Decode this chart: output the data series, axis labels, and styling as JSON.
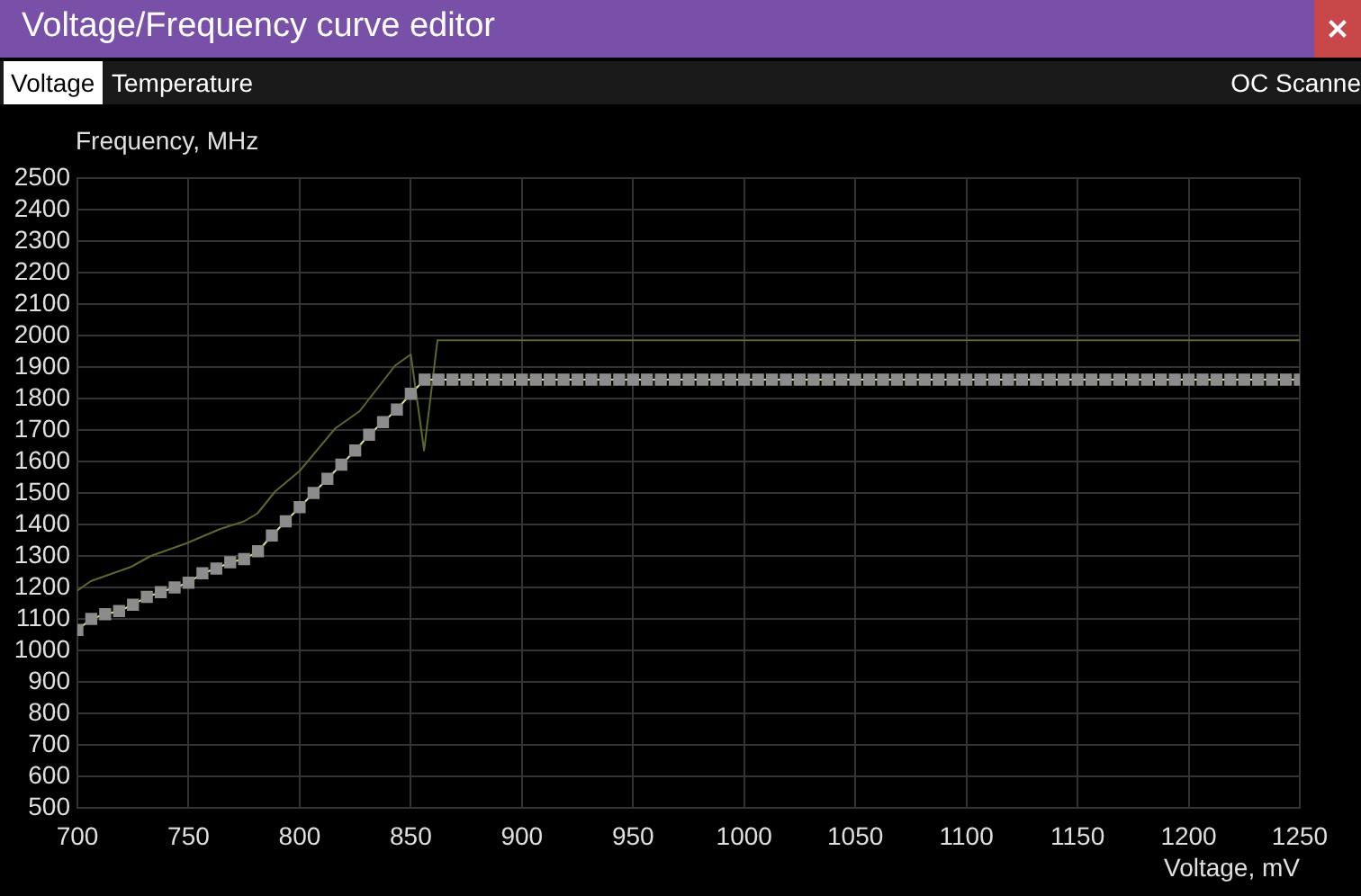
{
  "chart_data": {
    "type": "line",
    "title": "Voltage/Frequency curve editor",
    "xlabel": "Voltage, mV",
    "ylabel": "Frequency, MHz",
    "annotations": [
      "Voltage",
      "Temperature",
      "OC Scanne"
    ],
    "xlim": [
      700,
      1250
    ],
    "xticks": [
      700,
      750,
      800,
      850,
      900,
      950,
      1000,
      1050,
      1100,
      1150,
      1200,
      1250
    ],
    "ylim": [
      500,
      2500
    ],
    "yticks": [
      500,
      600,
      700,
      800,
      900,
      1000,
      1100,
      1200,
      1300,
      1400,
      1500,
      1600,
      1700,
      1800,
      1900,
      2000,
      2100,
      2200,
      2300,
      2400,
      2500
    ],
    "grid": true,
    "legend": false,
    "series": [
      {
        "marker": "square",
        "color": "#8c8c8c",
        "x": [
          700,
          706.25,
          712.5,
          718.75,
          725,
          731.25,
          737.5,
          743.75,
          750,
          756.25,
          762.5,
          768.75,
          775,
          781.25,
          787.5,
          793.75,
          800,
          806.25,
          812.5,
          818.75,
          825,
          831.25,
          837.5,
          843.75,
          850,
          856.25,
          862.5,
          868.75,
          875,
          881.25,
          887.5,
          893.75,
          900,
          906.25,
          912.5,
          918.75,
          925,
          931.25,
          937.5,
          943.75,
          950,
          956.25,
          962.5,
          968.75,
          975,
          981.25,
          987.5,
          993.75,
          1000,
          1006.25,
          1012.5,
          1018.75,
          1025,
          1031.25,
          1037.5,
          1043.75,
          1050,
          1056.25,
          1062.5,
          1068.75,
          1075,
          1081.25,
          1087.5,
          1093.75,
          1100,
          1106.25,
          1112.5,
          1118.75,
          1125,
          1131.25,
          1137.5,
          1143.75,
          1150,
          1156.25,
          1162.5,
          1168.75,
          1175,
          1181.25,
          1187.5,
          1193.75,
          1200,
          1206.25,
          1212.5,
          1218.75,
          1225,
          1231.25,
          1237.5,
          1243.75,
          1250
        ],
        "values": [
          1065,
          1100,
          1115,
          1125,
          1145,
          1170,
          1185,
          1200,
          1215,
          1245,
          1260,
          1280,
          1290,
          1315,
          1365,
          1410,
          1455,
          1500,
          1545,
          1590,
          1635,
          1685,
          1725,
          1765,
          1815,
          1860,
          1860,
          1860,
          1860,
          1860,
          1860,
          1860,
          1860,
          1860,
          1860,
          1860,
          1860,
          1860,
          1860,
          1860,
          1860,
          1860,
          1860,
          1860,
          1860,
          1860,
          1860,
          1860,
          1860,
          1860,
          1860,
          1860,
          1860,
          1860,
          1860,
          1860,
          1860,
          1860,
          1860,
          1860,
          1860,
          1860,
          1860,
          1860,
          1860,
          1860,
          1860,
          1860,
          1860,
          1860,
          1860,
          1860,
          1860,
          1860,
          1860,
          1860,
          1860,
          1860,
          1860,
          1860,
          1860,
          1860,
          1860,
          1860,
          1860,
          1860,
          1860,
          1860,
          1860
        ]
      },
      {
        "marker": "none",
        "color": "#5a6a2a",
        "x": [
          700,
          706,
          724,
          733,
          749,
          764,
          775,
          781,
          789,
          800,
          816,
          827,
          843,
          850,
          856,
          862,
          1250
        ],
        "values": [
          1190,
          1220,
          1265,
          1300,
          1340,
          1385,
          1410,
          1435,
          1505,
          1570,
          1705,
          1760,
          1905,
          1940,
          1635,
          1985,
          1985
        ]
      }
    ]
  }
}
